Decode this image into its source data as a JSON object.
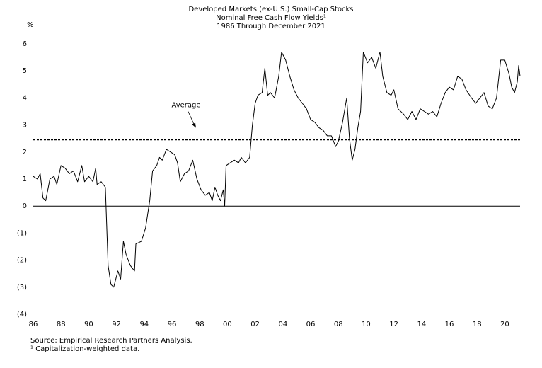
{
  "chart_data": {
    "type": "line",
    "title": "Developed Markets (ex-U.S.) Small-Cap Stocks",
    "subtitle": [
      "Nominal Free Cash Flow Yields¹",
      "1986 Through December 2021"
    ],
    "y_label": "%",
    "source": "Source:  Empirical Research Partners Analysis.",
    "footnote": "¹ Capitalization-weighted data.",
    "average": 2.45,
    "annotation": "Average",
    "color": "#000000",
    "x": [
      1986.0,
      1986.3,
      1986.5,
      1986.7,
      1986.9,
      1987.2,
      1987.5,
      1987.7,
      1988.0,
      1988.3,
      1988.6,
      1988.9,
      1989.2,
      1989.5,
      1989.7,
      1990.0,
      1990.3,
      1990.5,
      1990.6,
      1990.9,
      1991.2,
      1991.4,
      1991.6,
      1991.8,
      1992.1,
      1992.3,
      1992.5,
      1992.7,
      1993.0,
      1993.3,
      1993.4,
      1993.8,
      1994.1,
      1994.4,
      1994.6,
      1994.9,
      1995.1,
      1995.3,
      1995.6,
      1995.9,
      1996.2,
      1996.4,
      1996.6,
      1996.9,
      1997.2,
      1997.5,
      1997.8,
      1998.1,
      1998.4,
      1998.7,
      1998.9,
      1999.1,
      1999.3,
      1999.5,
      1999.7,
      1999.8,
      1999.9,
      2000.2,
      2000.5,
      2000.8,
      2001.0,
      2001.3,
      2001.6,
      2001.8,
      2002.0,
      2002.2,
      2002.5,
      2002.7,
      2002.9,
      2003.1,
      2003.4,
      2003.7,
      2003.9,
      2004.2,
      2004.5,
      2004.8,
      2005.1,
      2005.4,
      2005.7,
      2006.0,
      2006.3,
      2006.6,
      2006.9,
      2007.2,
      2007.5,
      2007.8,
      2008.0,
      2008.3,
      2008.6,
      2008.8,
      2009.0,
      2009.2,
      2009.4,
      2009.6,
      2009.8,
      2010.1,
      2010.4,
      2010.7,
      2011.0,
      2011.2,
      2011.5,
      2011.8,
      2012.0,
      2012.3,
      2012.7,
      2013.0,
      2013.3,
      2013.6,
      2013.9,
      2014.2,
      2014.5,
      2014.8,
      2015.1,
      2015.4,
      2015.7,
      2016.0,
      2016.3,
      2016.6,
      2016.9,
      2017.2,
      2017.6,
      2017.9,
      2018.2,
      2018.5,
      2018.8,
      2019.1,
      2019.4,
      2019.7,
      2020.0,
      2020.3,
      2020.5,
      2020.7,
      2020.9,
      2021.0,
      2021.1
    ],
    "values": [
      1.1,
      1.0,
      1.2,
      0.3,
      0.2,
      1.0,
      1.1,
      0.8,
      1.5,
      1.4,
      1.2,
      1.3,
      0.9,
      1.5,
      0.9,
      1.1,
      0.9,
      1.4,
      0.8,
      0.9,
      0.7,
      -2.2,
      -2.9,
      -3.0,
      -2.4,
      -2.7,
      -1.3,
      -1.8,
      -2.2,
      -2.4,
      -1.4,
      -1.3,
      -0.8,
      0.2,
      1.3,
      1.5,
      1.8,
      1.7,
      2.1,
      2.0,
      1.9,
      1.6,
      0.9,
      1.2,
      1.3,
      1.7,
      1.0,
      0.6,
      0.4,
      0.5,
      0.2,
      0.7,
      0.4,
      0.2,
      0.6,
      0.0,
      1.5,
      1.6,
      1.7,
      1.6,
      1.8,
      1.6,
      1.8,
      3.0,
      3.8,
      4.1,
      4.2,
      5.1,
      4.1,
      4.2,
      4.0,
      4.8,
      5.7,
      5.4,
      4.8,
      4.3,
      4.0,
      3.8,
      3.6,
      3.2,
      3.1,
      2.9,
      2.8,
      2.6,
      2.6,
      2.2,
      2.4,
      3.1,
      4.0,
      2.5,
      1.7,
      2.1,
      2.9,
      3.5,
      5.7,
      5.3,
      5.5,
      5.1,
      5.7,
      4.8,
      4.2,
      4.1,
      4.3,
      3.6,
      3.4,
      3.2,
      3.5,
      3.2,
      3.6,
      3.5,
      3.4,
      3.5,
      3.3,
      3.8,
      4.2,
      4.4,
      4.3,
      4.8,
      4.7,
      4.3,
      4.0,
      3.8,
      4.0,
      4.2,
      3.7,
      3.6,
      4.0,
      5.4,
      5.4,
      4.9,
      4.4,
      4.2,
      4.6,
      5.2,
      4.8
    ],
    "xlim": [
      1986,
      2021.1
    ],
    "ylim": [
      -4,
      6
    ],
    "xticks": [
      {
        "value": 1986,
        "label": "86"
      },
      {
        "value": 1988,
        "label": "88"
      },
      {
        "value": 1990,
        "label": "90"
      },
      {
        "value": 1992,
        "label": "92"
      },
      {
        "value": 1994,
        "label": "94"
      },
      {
        "value": 1996,
        "label": "96"
      },
      {
        "value": 1998,
        "label": "98"
      },
      {
        "value": 2000,
        "label": "00"
      },
      {
        "value": 2002,
        "label": "02"
      },
      {
        "value": 2004,
        "label": "04"
      },
      {
        "value": 2006,
        "label": "06"
      },
      {
        "value": 2008,
        "label": "08"
      },
      {
        "value": 2010,
        "label": "10"
      },
      {
        "value": 2012,
        "label": "12"
      },
      {
        "value": 2014,
        "label": "14"
      },
      {
        "value": 2016,
        "label": "16"
      },
      {
        "value": 2018,
        "label": "18"
      },
      {
        "value": 2020,
        "label": "20"
      }
    ],
    "yticks": [
      6,
      5,
      4,
      3,
      2,
      1,
      0,
      {
        "value": -1,
        "label": "(1)"
      },
      {
        "value": -2,
        "label": "(2)"
      },
      {
        "value": -3,
        "label": "(3)"
      },
      {
        "value": -4,
        "label": "(4)"
      }
    ]
  }
}
